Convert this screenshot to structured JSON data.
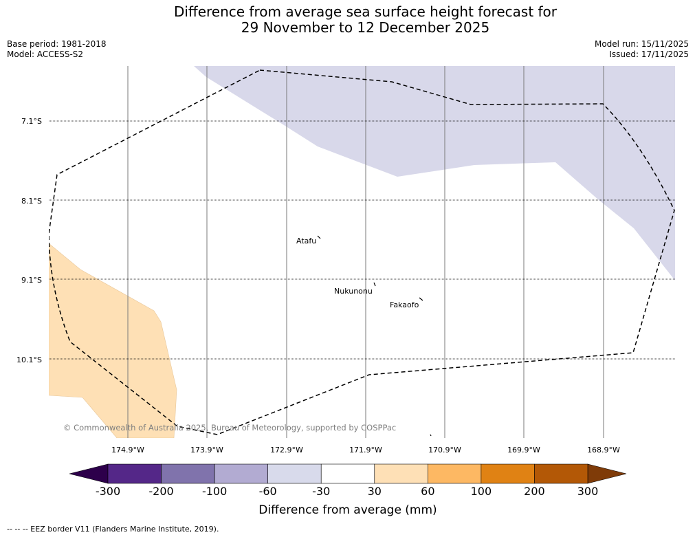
{
  "title": {
    "line1": "Difference from average sea surface height forecast for",
    "line2": "29 November to 12 December 2025"
  },
  "meta": {
    "base_period": "Base period: 1981-2018",
    "model": "Model: ACCESS-S2",
    "model_run": "Model run: 15/11/2025",
    "issued": "Issued: 17/11/2025"
  },
  "map": {
    "latitude_labels": [
      "7.1°S",
      "8.1°S",
      "9.1°S",
      "10.1°S"
    ],
    "longitude_labels": [
      "174.9°W",
      "173.9°W",
      "172.9°W",
      "171.9°W",
      "170.9°W",
      "169.9°W",
      "168.9°W"
    ],
    "places": [
      "Atafu",
      "Nukunonu",
      "Fakaofo"
    ],
    "copyright": "© Commonwealth of Australia 2025, Bureau of Meteorology, supported by COSPPac",
    "anomaly_regions": [
      {
        "category": "-60 to -30",
        "color": "#d8d8ea"
      },
      {
        "category": "30 to 60",
        "color": "#fee0b5"
      }
    ]
  },
  "colorbar": {
    "title": "Difference from average (mm)",
    "ticks": [
      "-300",
      "-200",
      "-100",
      "-60",
      "-30",
      "30",
      "60",
      "100",
      "200",
      "300"
    ],
    "colors": [
      "#542788",
      "#8073ac",
      "#b2abd2",
      "#d8daeb",
      "#ffffff",
      "#fee0b6",
      "#fdb863",
      "#e08214",
      "#b35806"
    ],
    "under_color": "#2d004b",
    "over_color": "#7f3b08"
  },
  "footer": "--  --  -- EEZ border V11 (Flanders Marine Institute, 2019)."
}
